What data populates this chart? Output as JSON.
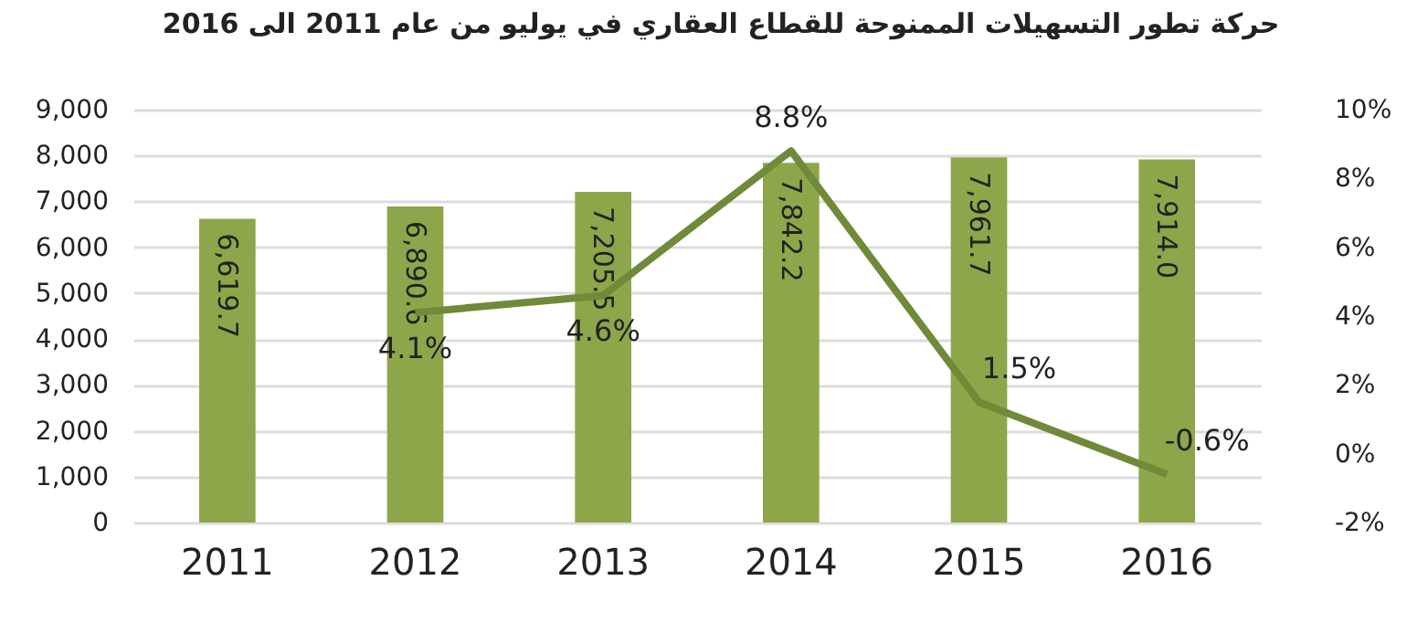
{
  "chart_data": {
    "type": "bar",
    "title": "حركة تطور التسهيلات الممنوحة للقطاع العقاري في يوليو من عام 2011 الى 2016",
    "categories": [
      "2011",
      "2012",
      "2013",
      "2014",
      "2015",
      "2016"
    ],
    "series": [
      {
        "color": "#8ea64a",
        "values": [
          6619.7,
          6890.6,
          7205.5,
          7842.2,
          7961.7,
          7914.0
        ],
        "value_labels": [
          "6,619.7",
          "6,890.6",
          "7,205.5",
          "7,842.2",
          "7,961.7",
          "7,914.0"
        ]
      },
      {
        "type": "line",
        "axis": "y2",
        "color": "#6f8a38",
        "values": [
          null,
          4.1,
          4.6,
          8.8,
          1.5,
          -0.6
        ],
        "value_labels": [
          null,
          "4.1%",
          "4.6%",
          "8.8%",
          "1.5%",
          "-0.6%"
        ]
      }
    ],
    "ylim": [
      0,
      9000
    ],
    "yticks": [
      {
        "value": 0,
        "label": "0"
      },
      {
        "value": 1000,
        "label": "1,000"
      },
      {
        "value": 2000,
        "label": "2,000"
      },
      {
        "value": 3000,
        "label": "3,000"
      },
      {
        "value": 4000,
        "label": "4,000"
      },
      {
        "value": 5000,
        "label": "5,000"
      },
      {
        "value": 6000,
        "label": "6,000"
      },
      {
        "value": 7000,
        "label": "7,000"
      },
      {
        "value": 8000,
        "label": "8,000"
      },
      {
        "value": 9000,
        "label": "9,000"
      }
    ],
    "y2lim": [
      -2,
      10
    ],
    "y2ticks": [
      {
        "value": -2,
        "label": "-2%"
      },
      {
        "value": 0,
        "label": "0%"
      },
      {
        "value": 2,
        "label": "2%"
      },
      {
        "value": 4,
        "label": "4%"
      },
      {
        "value": 6,
        "label": "6%"
      },
      {
        "value": 8,
        "label": "8%"
      },
      {
        "value": 10,
        "label": "10%"
      }
    ],
    "grid": "y",
    "marker": "none"
  }
}
